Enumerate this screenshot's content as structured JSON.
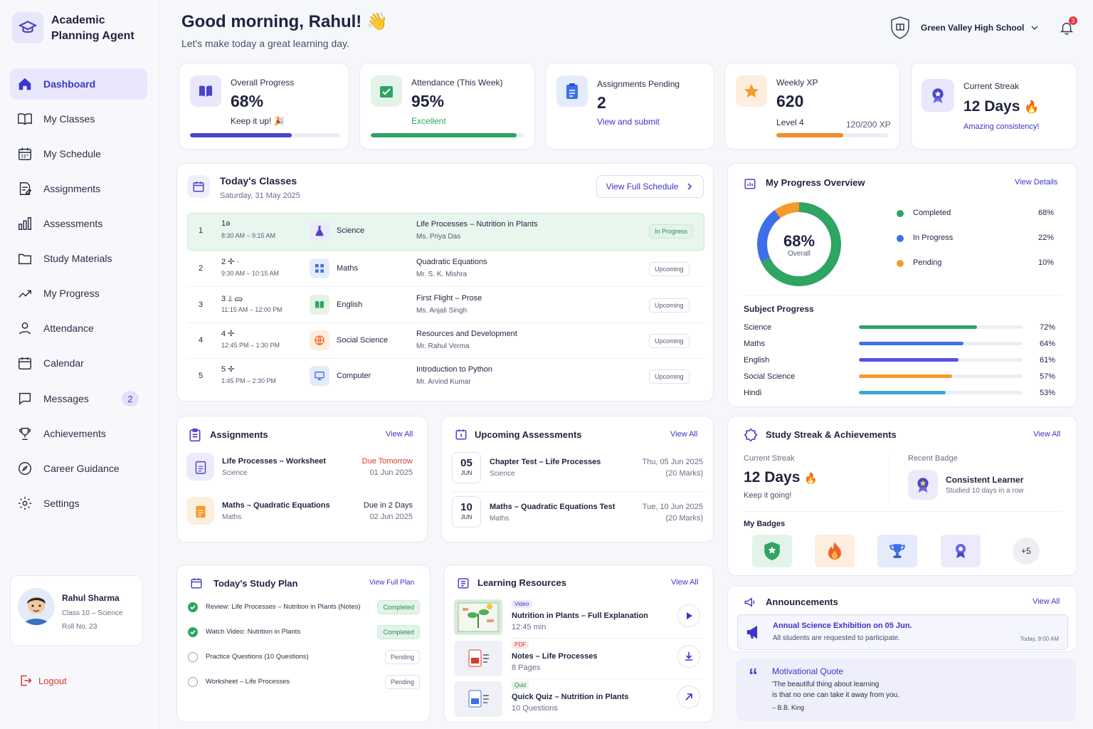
{
  "app": {
    "name": "Academic Planning Agent"
  },
  "sidebar": {
    "items": [
      {
        "label": "Dashboard"
      },
      {
        "label": "My Classes"
      },
      {
        "label": "My Schedule"
      },
      {
        "label": "Assignments"
      },
      {
        "label": "Assessments"
      },
      {
        "label": "Study Materials"
      },
      {
        "label": "My Progress"
      },
      {
        "label": "Attendance"
      },
      {
        "label": "Calendar"
      },
      {
        "label": "Messages",
        "badge": "2"
      },
      {
        "label": "Achievements"
      },
      {
        "label": "Career Guidance"
      },
      {
        "label": "Settings"
      }
    ],
    "profile": {
      "name": "Rahul Sharma",
      "class": "Class 10 – Science",
      "roll": "Roll No. 23"
    },
    "logout": "Logout"
  },
  "header": {
    "greeting": "Good morning, Rahul! 👋",
    "subtitle": "Let's make today a great learning day.",
    "school": "Green Valley High School",
    "notifications": "3"
  },
  "stats": {
    "overall": {
      "label": "Overall Progress",
      "value": "68%",
      "note": "Keep it up! 🎉",
      "progress": 0.68
    },
    "attendance": {
      "label": "Attendance (This Week)",
      "value": "95%",
      "note": "Excellent",
      "progress": 0.95
    },
    "assignments": {
      "label": "Assignments Pending",
      "value": "2",
      "note": "View and submit"
    },
    "xp": {
      "label": "Weekly XP",
      "value": "620",
      "level": "Level 4",
      "xp_text": "120/200 XP",
      "progress": 0.6
    },
    "streak": {
      "label": "Current Streak",
      "value": "12 Days",
      "note": "Amazing consistency!"
    }
  },
  "today_classes": {
    "title": "Today's Classes",
    "date": "Saturday, 31 May 2025",
    "button": "View Full Schedule",
    "rows": [
      {
        "num": "1",
        "period": "1ə",
        "time": "8:30 AM – 9:15 AM",
        "subject": "Science",
        "topic": "Life Processes – Nutrition in Plants",
        "teacher": "Ms. Priya Das",
        "status": "In Progress"
      },
      {
        "num": "2",
        "period": "2 ✢ ·",
        "time": "9:30 AM – 10:15 AM",
        "subject": "Maths",
        "topic": "Quadratic Equations",
        "teacher": "Mr. S. K. Mishra",
        "status": "Upcoming"
      },
      {
        "num": "3",
        "period": "3 ⫫ ᯅ",
        "time": "11:15 AM – 12:00 PM",
        "subject": "English",
        "topic": "First Flight – Prose",
        "teacher": "Ms. Anjali Singh",
        "status": "Upcoming"
      },
      {
        "num": "4",
        "period": "4 ✢",
        "time": "12:45 PM – 1:30 PM",
        "subject": "Social Science",
        "topic": "Resources and Development",
        "teacher": "Mr. Rahul Verma",
        "status": "Upcoming"
      },
      {
        "num": "5",
        "period": "5 ✢",
        "time": "1:45 PM – 2:30 PM",
        "subject": "Computer",
        "topic": "Introduction to Python",
        "teacher": "Mr. Arvind Kumar",
        "status": "Upcoming"
      }
    ]
  },
  "progress_overview": {
    "title": "My Progress Overview",
    "view": "View Details",
    "donut_value": "68%",
    "donut_label": "Overall",
    "legend": [
      {
        "label": "Completed",
        "value": "68%",
        "color": "#2ea562"
      },
      {
        "label": "In Progress",
        "value": "22%",
        "color": "#3f6fe8"
      },
      {
        "label": "Pending",
        "value": "10%",
        "color": "#f59a2b"
      }
    ],
    "donut_segments": [
      {
        "value": 68,
        "color": "#2ea562"
      },
      {
        "value": 22,
        "color": "#3f6fe8"
      },
      {
        "value": 10,
        "color": "#f59a2b"
      }
    ],
    "subject_title": "Subject Progress",
    "subjects": [
      {
        "name": "Science",
        "value": "72%",
        "frac": 0.72,
        "color": "#2ea562"
      },
      {
        "name": "Maths",
        "value": "64%",
        "frac": 0.64,
        "color": "#3f6fe8"
      },
      {
        "name": "English",
        "value": "61%",
        "frac": 0.61,
        "color": "#5b4ee0"
      },
      {
        "name": "Social Science",
        "value": "57%",
        "frac": 0.57,
        "color": "#f59a2b"
      },
      {
        "name": "Hindi",
        "value": "53%",
        "frac": 0.53,
        "color": "#3aa9d8"
      }
    ]
  },
  "assignments": {
    "title": "Assignments",
    "view": "View All",
    "items": [
      {
        "title": "Life Processes – Worksheet",
        "subject": "Science",
        "due": "Due Tomorrow",
        "date": "01 Jun 2025"
      },
      {
        "title": "Maths – Quadratic Equations",
        "subject": "Maths",
        "due": "Due in 2 Days",
        "date": "02 Jun 2025"
      }
    ]
  },
  "assessments": {
    "title": "Upcoming Assessments",
    "view": "View All",
    "items": [
      {
        "day": "05",
        "month": "JUN",
        "title": "Chapter Test – Life Processes",
        "subject": "Science",
        "date": "Thu, 05 Jun 2025",
        "marks": "(20 Marks)"
      },
      {
        "day": "10",
        "month": "JUN",
        "title": "Maths – Quadratic Equations Test",
        "subject": "Maths",
        "date": "Tue, 10 Jun 2025",
        "marks": "(20 Marks)"
      }
    ]
  },
  "streak": {
    "title": "Study Streak & Achievements",
    "view": "View All",
    "current_label": "Current Streak",
    "current_value": "12 Days",
    "keep": "Keep it going!",
    "badge_label": "Recent Badge",
    "badge_name": "Consistent Learner",
    "badge_desc": "Studied 10 days in a row",
    "my_badges": "My Badges",
    "more": "+5"
  },
  "study_plan": {
    "title": "Today's Study Plan",
    "view": "View Full Plan",
    "items": [
      {
        "text": "Review: Life Processes – Nutrition in Plants (Notes)",
        "status": "Completed"
      },
      {
        "text": "Watch Video: Nutrition in Plants",
        "status": "Completed"
      },
      {
        "text": "Practice Questions (10 Questions)",
        "status": "Pending"
      },
      {
        "text": "Worksheet – Life Processes",
        "status": "Pending"
      }
    ]
  },
  "resources": {
    "title": "Learning Resources",
    "view": "View All",
    "items": [
      {
        "type": "Video",
        "title": "Nutrition in Plants – Full Explanation",
        "meta": "12:45 min"
      },
      {
        "type": "PDF",
        "title": "Notes – Life Processes",
        "meta": "8 Pages"
      },
      {
        "type": "Quiz",
        "title": "Quick Quiz – Nutrition in Plants",
        "meta": "10 Questions"
      }
    ]
  },
  "announcements": {
    "title": "Announcements",
    "view": "View All",
    "headline": "Annual Science Exhibition on 05 Jun.",
    "body": "All students are requested to participate.",
    "time": "Today, 9:00 AM"
  },
  "quote": {
    "title": "Motivational Quote",
    "line1": "'The beautiful thing about learning",
    "line2": "is that no one can take it away from you.",
    "author": "– B.B. King"
  }
}
